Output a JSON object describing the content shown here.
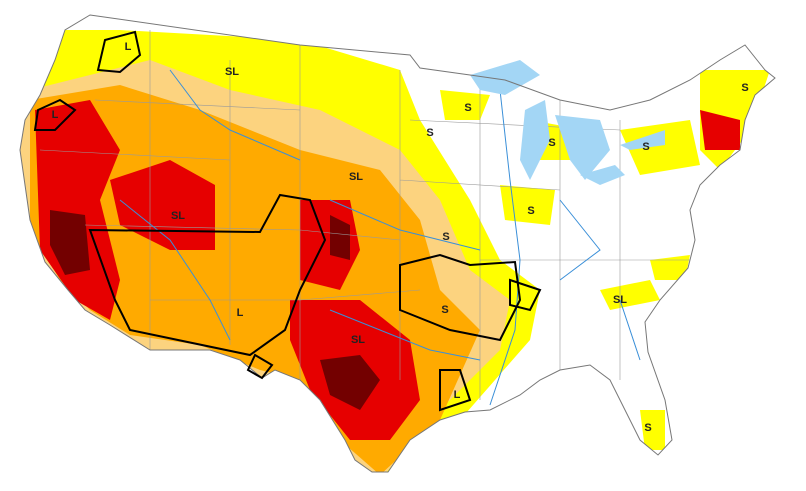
{
  "map_labels": [
    "L",
    "SL",
    "L",
    "S",
    "S",
    "S",
    "S",
    "S",
    "SL",
    "SL",
    "S",
    "S",
    "L",
    "S",
    "SL",
    "SL",
    "L",
    "S"
  ]
}
